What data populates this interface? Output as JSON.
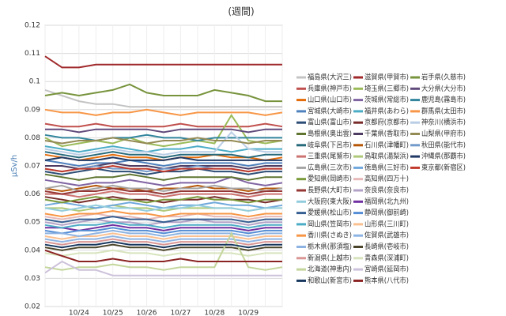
{
  "chart_data": {
    "type": "line",
    "title": "(週間)",
    "y_label": "μSv/h",
    "categories": [
      null,
      null,
      "10/24",
      null,
      "10/25",
      null,
      "10/26",
      null,
      "10/27",
      null,
      "10/28",
      null,
      "10/29",
      null,
      null
    ],
    "ylim": [
      0.02,
      0.12
    ],
    "yticks": [
      0.02,
      0.03,
      0.04,
      0.05,
      0.06,
      0.07,
      0.08,
      0.09,
      0.1,
      0.11,
      0.12
    ],
    "grid": true,
    "legend": "right",
    "series": [
      {
        "name": "福島県(大沢三)",
        "color": "#c4c4c4",
        "values": [
          0.097,
          0.095,
          0.093,
          0.092,
          0.092,
          0.091,
          0.091,
          0.091,
          0.091,
          0.091,
          0.091,
          0.091,
          0.091,
          0.091,
          0.091
        ]
      },
      {
        "name": "滋賀県(甲賀市)",
        "color": "#a0282a",
        "values": [
          0.109,
          0.105,
          0.105,
          0.106,
          0.106,
          0.106,
          0.106,
          0.106,
          0.106,
          0.106,
          0.106,
          0.106,
          0.106,
          0.106,
          0.106
        ]
      },
      {
        "name": "岩手県(久慈市)",
        "color": "#77933c",
        "values": [
          0.095,
          0.096,
          0.095,
          0.096,
          0.097,
          0.099,
          0.096,
          0.095,
          0.095,
          0.095,
          0.097,
          0.096,
          0.095,
          0.093,
          0.093
        ]
      },
      {
        "name": "兵庫県(神戸市)",
        "color": "#c0504d",
        "values": [
          0.085,
          0.084,
          0.084,
          0.085,
          0.084,
          0.084,
          0.084,
          0.084,
          0.085,
          0.084,
          0.084,
          0.084,
          0.084,
          0.085,
          0.084
        ]
      },
      {
        "name": "埼玉県(三郷市)",
        "color": "#9bbb59",
        "values": [
          0.08,
          0.077,
          0.078,
          0.079,
          0.078,
          0.08,
          0.078,
          0.077,
          0.078,
          0.079,
          0.078,
          0.088,
          0.079,
          0.078,
          0.079
        ]
      },
      {
        "name": "大分県(大分市)",
        "color": "#604a7b",
        "values": [
          0.083,
          0.083,
          0.082,
          0.083,
          0.083,
          0.083,
          0.083,
          0.082,
          0.083,
          0.083,
          0.083,
          0.083,
          0.082,
          0.083,
          0.083
        ]
      },
      {
        "name": "山口県(山口市)",
        "color": "#e46c0a",
        "values": [
          0.074,
          0.073,
          0.072,
          0.073,
          0.074,
          0.073,
          0.073,
          0.072,
          0.073,
          0.073,
          0.074,
          0.073,
          0.073,
          0.072,
          0.073
        ]
      },
      {
        "name": "茨城県(常総市)",
        "color": "#8064a2",
        "values": [
          0.065,
          0.064,
          0.063,
          0.064,
          0.064,
          0.065,
          0.064,
          0.063,
          0.064,
          0.064,
          0.064,
          0.066,
          0.064,
          0.063,
          0.064
        ]
      },
      {
        "name": "鹿児島(霧島市)",
        "color": "#31859c",
        "values": [
          0.081,
          0.08,
          0.08,
          0.079,
          0.08,
          0.08,
          0.081,
          0.08,
          0.08,
          0.079,
          0.08,
          0.08,
          0.08,
          0.08,
          0.08
        ]
      },
      {
        "name": "宮城県(大崎市)",
        "color": "#4f81bd",
        "values": [
          0.072,
          0.071,
          0.07,
          0.071,
          0.071,
          0.072,
          0.071,
          0.07,
          0.071,
          0.071,
          0.071,
          0.071,
          0.07,
          0.071,
          0.071
        ]
      },
      {
        "name": "福井県(あわら)",
        "color": "#4bacc6",
        "values": [
          0.077,
          0.076,
          0.075,
          0.076,
          0.077,
          0.076,
          0.075,
          0.076,
          0.076,
          0.077,
          0.076,
          0.075,
          0.076,
          0.076,
          0.076
        ]
      },
      {
        "name": "群馬県(太田市)",
        "color": "#f79646",
        "values": [
          0.09,
          0.089,
          0.089,
          0.088,
          0.089,
          0.089,
          0.09,
          0.089,
          0.088,
          0.089,
          0.089,
          0.089,
          0.089,
          0.088,
          0.089
        ]
      },
      {
        "name": "富山県(富山市)",
        "color": "#2c4d75",
        "values": [
          0.068,
          0.067,
          0.068,
          0.069,
          0.068,
          0.068,
          0.067,
          0.068,
          0.068,
          0.069,
          0.068,
          0.068,
          0.067,
          0.068,
          0.068
        ]
      },
      {
        "name": "京都府(京都市)",
        "color": "#772c2a",
        "values": [
          0.059,
          0.058,
          0.057,
          0.058,
          0.059,
          0.058,
          0.058,
          0.057,
          0.058,
          0.058,
          0.059,
          0.058,
          0.058,
          0.057,
          0.058
        ]
      },
      {
        "name": "神奈川(横浜市)",
        "color": "#b9cde5",
        "values": [
          0.076,
          0.075,
          0.074,
          0.075,
          0.076,
          0.075,
          0.075,
          0.074,
          0.075,
          0.075,
          0.075,
          0.082,
          0.076,
          0.075,
          0.075
        ]
      },
      {
        "name": "島根県(奥出雲)",
        "color": "#5f7530",
        "values": [
          0.067,
          0.066,
          0.065,
          0.066,
          0.066,
          0.067,
          0.066,
          0.065,
          0.066,
          0.066,
          0.066,
          0.066,
          0.065,
          0.066,
          0.066
        ]
      },
      {
        "name": "千葉県(香取市)",
        "color": "#4d3b62",
        "values": [
          0.07,
          0.07,
          0.069,
          0.07,
          0.071,
          0.07,
          0.07,
          0.069,
          0.07,
          0.07,
          0.07,
          0.07,
          0.069,
          0.07,
          0.07
        ]
      },
      {
        "name": "山梨県(甲府市)",
        "color": "#948a54",
        "values": [
          0.079,
          0.078,
          0.079,
          0.079,
          0.08,
          0.079,
          0.078,
          0.079,
          0.079,
          0.08,
          0.079,
          0.079,
          0.078,
          0.079,
          0.079
        ]
      },
      {
        "name": "岐阜県(下呂市)",
        "color": "#276a7c",
        "values": [
          0.075,
          0.074,
          0.073,
          0.074,
          0.075,
          0.074,
          0.074,
          0.073,
          0.074,
          0.074,
          0.074,
          0.074,
          0.073,
          0.074,
          0.074
        ]
      },
      {
        "name": "石川県(津幡町)",
        "color": "#b65708",
        "values": [
          0.062,
          0.061,
          0.062,
          0.063,
          0.062,
          0.062,
          0.061,
          0.062,
          0.062,
          0.063,
          0.062,
          0.062,
          0.061,
          0.062,
          0.062
        ]
      },
      {
        "name": "秋田県(能代市)",
        "color": "#729aca",
        "values": [
          0.069,
          0.068,
          0.069,
          0.07,
          0.069,
          0.069,
          0.068,
          0.069,
          0.069,
          0.07,
          0.069,
          0.069,
          0.068,
          0.069,
          0.069
        ]
      },
      {
        "name": "三重県(尾鷲市)",
        "color": "#cd7371",
        "values": [
          0.06,
          0.06,
          0.059,
          0.06,
          0.061,
          0.06,
          0.06,
          0.059,
          0.06,
          0.06,
          0.06,
          0.06,
          0.059,
          0.06,
          0.06
        ]
      },
      {
        "name": "鳥取県(湯梨浜)",
        "color": "#afc97a",
        "values": [
          0.055,
          0.055,
          0.054,
          0.055,
          0.056,
          0.055,
          0.055,
          0.054,
          0.055,
          0.055,
          0.055,
          0.055,
          0.054,
          0.055,
          0.055
        ]
      },
      {
        "name": "沖縄県(那覇市)",
        "color": "#1f3864",
        "values": [
          0.072,
          0.073,
          0.072,
          0.072,
          0.073,
          0.072,
          0.072,
          0.072,
          0.073,
          0.072,
          0.072,
          0.072,
          0.072,
          0.072,
          0.072
        ]
      },
      {
        "name": "広島県(三次市)",
        "color": "#a5a5a5",
        "values": [
          0.062,
          0.063,
          0.061,
          0.062,
          0.063,
          0.062,
          0.062,
          0.061,
          0.062,
          0.062,
          0.063,
          0.062,
          0.062,
          0.061,
          0.062
        ]
      },
      {
        "name": "徳島県(三好市)",
        "color": "#6fa8dc",
        "values": [
          0.056,
          0.057,
          0.056,
          0.055,
          0.056,
          0.057,
          0.056,
          0.055,
          0.056,
          0.056,
          0.057,
          0.056,
          0.056,
          0.055,
          0.056
        ]
      },
      {
        "name": "東京都(新宿区)",
        "color": "#c0392b",
        "values": [
          0.069,
          0.068,
          0.069,
          0.069,
          0.07,
          0.069,
          0.069,
          0.068,
          0.069,
          0.069,
          0.069,
          0.069,
          0.068,
          0.069,
          0.069
        ]
      },
      {
        "name": "愛知県(岡崎市)",
        "color": "#7a9a3b",
        "values": [
          0.058,
          0.057,
          0.058,
          0.059,
          0.058,
          0.058,
          0.057,
          0.058,
          0.058,
          0.059,
          0.058,
          0.058,
          0.057,
          0.058,
          0.058
        ]
      },
      {
        "name": "高知県(四万十)",
        "color": "#e6b9b8",
        "values": [
          0.052,
          0.051,
          0.052,
          0.053,
          0.052,
          0.052,
          0.051,
          0.052,
          0.052,
          0.053,
          0.052,
          0.052,
          0.051,
          0.052,
          0.052
        ]
      },
      {
        "name": "長野県(大町市)",
        "color": "#953735",
        "values": [
          0.061,
          0.06,
          0.061,
          0.061,
          0.062,
          0.061,
          0.061,
          0.06,
          0.061,
          0.061,
          0.061,
          0.061,
          0.06,
          0.061,
          0.061
        ]
      },
      {
        "name": "奈良県(奈良市)",
        "color": "#b3a2c7",
        "values": [
          0.05,
          0.049,
          0.05,
          0.051,
          0.05,
          0.05,
          0.049,
          0.05,
          0.05,
          0.051,
          0.05,
          0.05,
          0.049,
          0.05,
          0.05
        ]
      },
      {
        "name": "大阪府(東大阪)",
        "color": "#93cddd",
        "values": [
          0.055,
          0.054,
          0.055,
          0.056,
          0.055,
          0.055,
          0.054,
          0.055,
          0.055,
          0.056,
          0.055,
          0.055,
          0.054,
          0.055,
          0.055
        ]
      },
      {
        "name": "福岡県(北九州)",
        "color": "#7030a0",
        "values": [
          0.048,
          0.048,
          0.047,
          0.048,
          0.049,
          0.048,
          0.048,
          0.047,
          0.048,
          0.048,
          0.048,
          0.048,
          0.047,
          0.048,
          0.048
        ]
      },
      {
        "name": "愛媛県(松山市)",
        "color": "#376092",
        "values": [
          0.051,
          0.05,
          0.051,
          0.051,
          0.052,
          0.051,
          0.051,
          0.05,
          0.051,
          0.051,
          0.051,
          0.051,
          0.05,
          0.051,
          0.051
        ]
      },
      {
        "name": "静岡県(御前崎)",
        "color": "#558ed5",
        "values": [
          0.047,
          0.046,
          0.047,
          0.047,
          0.048,
          0.047,
          0.047,
          0.046,
          0.047,
          0.047,
          0.047,
          0.047,
          0.046,
          0.047,
          0.047
        ]
      },
      {
        "name": "岡山県(笠岡市)",
        "color": "#4bacc6",
        "values": [
          0.049,
          0.048,
          0.049,
          0.049,
          0.05,
          0.049,
          0.049,
          0.048,
          0.049,
          0.049,
          0.049,
          0.049,
          0.048,
          0.049,
          0.049
        ]
      },
      {
        "name": "山形県(三川町)",
        "color": "#fac090",
        "values": [
          0.045,
          0.044,
          0.045,
          0.045,
          0.046,
          0.045,
          0.045,
          0.044,
          0.045,
          0.045,
          0.045,
          0.045,
          0.044,
          0.045,
          0.045
        ]
      },
      {
        "name": "香川県(さぬき)",
        "color": "#f79646",
        "values": [
          0.053,
          0.052,
          0.053,
          0.053,
          0.054,
          0.053,
          0.053,
          0.052,
          0.053,
          0.053,
          0.053,
          0.053,
          0.052,
          0.053,
          0.053
        ]
      },
      {
        "name": "佐賀県(武雄市)",
        "color": "#8eb4e3",
        "values": [
          0.044,
          0.043,
          0.044,
          0.044,
          0.045,
          0.044,
          0.044,
          0.043,
          0.044,
          0.044,
          0.044,
          0.044,
          0.043,
          0.044,
          0.044
        ]
      },
      {
        "name": "栃木県(那須塩)",
        "color": "#8db3e2",
        "values": [
          0.046,
          0.046,
          0.045,
          0.046,
          0.047,
          0.046,
          0.046,
          0.045,
          0.046,
          0.046,
          0.046,
          0.046,
          0.045,
          0.046,
          0.046
        ]
      },
      {
        "name": "長崎県(壱岐市)",
        "color": "#4a452a",
        "values": [
          0.041,
          0.04,
          0.041,
          0.041,
          0.042,
          0.041,
          0.041,
          0.04,
          0.041,
          0.041,
          0.041,
          0.041,
          0.04,
          0.041,
          0.041
        ]
      },
      {
        "name": "新潟県(上越市)",
        "color": "#d99694",
        "values": [
          0.043,
          0.042,
          0.043,
          0.043,
          0.044,
          0.043,
          0.043,
          0.042,
          0.043,
          0.043,
          0.043,
          0.043,
          0.042,
          0.043,
          0.043
        ]
      },
      {
        "name": "青森県(深浦町)",
        "color": "#d7e4bd",
        "values": [
          0.039,
          0.038,
          0.039,
          0.039,
          0.04,
          0.039,
          0.039,
          0.038,
          0.039,
          0.039,
          0.039,
          0.039,
          0.038,
          0.039,
          0.039
        ]
      },
      {
        "name": "北海道(神恵内)",
        "color": "#c3d69b",
        "values": [
          0.034,
          0.033,
          0.034,
          0.034,
          0.035,
          0.034,
          0.034,
          0.033,
          0.034,
          0.034,
          0.034,
          0.046,
          0.034,
          0.033,
          0.034
        ]
      },
      {
        "name": "宮崎県(延岡市)",
        "color": "#ccc1da",
        "values": [
          0.032,
          0.036,
          0.033,
          0.033,
          0.031,
          0.031,
          0.031,
          0.031,
          0.031,
          0.031,
          0.031,
          0.031,
          0.031,
          0.031,
          0.031
        ]
      },
      {
        "name": "和歌山(新宮市)",
        "color": "#17375e",
        "values": [
          0.042,
          0.041,
          0.042,
          0.042,
          0.043,
          0.042,
          0.042,
          0.041,
          0.042,
          0.042,
          0.042,
          0.042,
          0.041,
          0.042,
          0.042
        ]
      },
      {
        "name": "熊本県(八代市)",
        "color": "#8b2323",
        "values": [
          0.04,
          0.038,
          0.036,
          0.036,
          0.037,
          0.036,
          0.036,
          0.036,
          0.037,
          0.036,
          0.036,
          0.036,
          0.036,
          0.036,
          0.036
        ]
      }
    ]
  }
}
